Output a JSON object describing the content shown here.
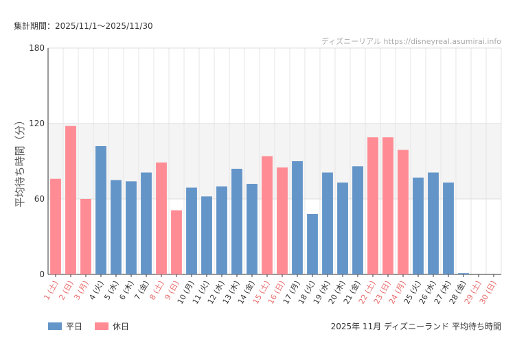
{
  "period_label": "集計期間：2025/11/1〜2025/11/30",
  "source_label": "ディズニーリアル https://disneyreal.asumirai.info",
  "caption": "2025年 11月 ディズニーランド 平均待ち時間",
  "colors": {
    "weekday": "#6495c8",
    "holiday": "#ff8c94",
    "holiday_label": "#e86a6a",
    "band": "#f4f4f4"
  },
  "legend": [
    {
      "label": "平日",
      "color": "#6495c8"
    },
    {
      "label": "休日",
      "color": "#ff8c94"
    }
  ],
  "chart_data": {
    "type": "bar",
    "title": "2025年 11月 ディズニーランド 平均待ち時間",
    "ylabel": "平均待ち時間（分）",
    "xlabel": "",
    "ylim": [
      0,
      180
    ],
    "yticks": [
      0,
      60,
      120,
      180
    ],
    "categories": [
      "1 (土)",
      "2 (日)",
      "3 (月)",
      "4 (火)",
      "5 (水)",
      "6 (木)",
      "7 (金)",
      "8 (土)",
      "9 (日)",
      "10 (月)",
      "11 (火)",
      "12 (水)",
      "13 (木)",
      "14 (金)",
      "15 (土)",
      "16 (日)",
      "17 (月)",
      "18 (火)",
      "19 (水)",
      "20 (木)",
      "21 (金)",
      "22 (土)",
      "23 (日)",
      "24 (月)",
      "25 (火)",
      "26 (水)",
      "27 (木)",
      "28 (金)",
      "29 (土)",
      "30 (日)"
    ],
    "values": [
      76,
      118,
      60,
      102,
      75,
      74,
      81,
      89,
      51,
      69,
      62,
      70,
      84,
      72,
      94,
      85,
      90,
      48,
      81,
      73,
      86,
      109,
      109,
      99,
      77,
      81,
      73,
      1,
      0,
      0
    ],
    "holiday": [
      true,
      true,
      true,
      false,
      false,
      false,
      false,
      true,
      true,
      false,
      false,
      false,
      false,
      false,
      true,
      true,
      false,
      false,
      false,
      false,
      false,
      true,
      true,
      true,
      false,
      false,
      false,
      false,
      true,
      true
    ],
    "series": [
      {
        "name": "平日"
      },
      {
        "name": "休日"
      }
    ]
  }
}
